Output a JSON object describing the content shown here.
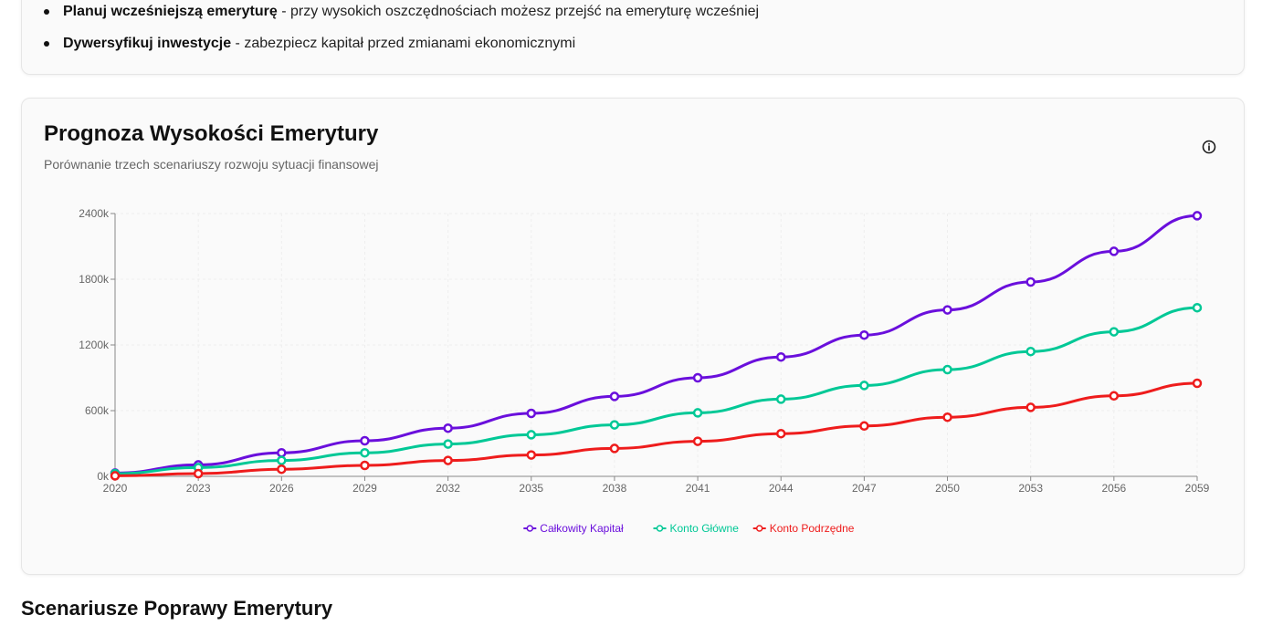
{
  "tips": [
    {
      "bold": "Planuj wcześniejszą emeryturę",
      "text": " - przy wysokich oszczędnościach możesz przejść na emeryturę wcześniej"
    },
    {
      "bold": "Dywersyfikuj inwestycje",
      "text": " - zabezpiecz kapitał przed zmianami ekonomicznymi"
    }
  ],
  "chart_card": {
    "title": "Prognoza Wysokości Emerytury",
    "subtitle": "Porównanie trzech scenariuszy rozwoju sytuacji finansowej",
    "info_icon": "info-icon"
  },
  "chart_data": {
    "type": "line",
    "x": [
      2020,
      2023,
      2026,
      2029,
      2032,
      2035,
      2038,
      2041,
      2044,
      2047,
      2050,
      2053,
      2056,
      2059
    ],
    "x_tick_labels": [
      "2020",
      "2023",
      "2026",
      "2029",
      "2032",
      "2035",
      "2038",
      "2041",
      "2044",
      "2047",
      "2050",
      "2053",
      "2056",
      "2059"
    ],
    "y_ticks": [
      0,
      600000,
      1200000,
      1800000,
      2400000
    ],
    "y_tick_labels": [
      "0k",
      "600k",
      "1200k",
      "1800k",
      "2400k"
    ],
    "ylim": [
      0,
      2400000
    ],
    "grid": true,
    "legend_position": "bottom-center",
    "series": [
      {
        "name": "Całkowity Kapitał",
        "color": "#6a0fdc",
        "values": [
          30000,
          105000,
          215000,
          325000,
          440000,
          575000,
          730000,
          900000,
          1090000,
          1290000,
          1520000,
          1775000,
          2055000,
          2380000
        ]
      },
      {
        "name": "Konto Główne",
        "color": "#00c896",
        "values": [
          25000,
          80000,
          145000,
          215000,
          295000,
          380000,
          470000,
          580000,
          705000,
          830000,
          975000,
          1140000,
          1320000,
          1540000
        ]
      },
      {
        "name": "Konto Podrzędne",
        "color": "#ee1c1c",
        "values": [
          5000,
          25000,
          65000,
          100000,
          145000,
          195000,
          255000,
          320000,
          390000,
          460000,
          540000,
          630000,
          735000,
          850000
        ]
      }
    ]
  },
  "section_heading": "Scenariusze Poprawy Emerytury"
}
